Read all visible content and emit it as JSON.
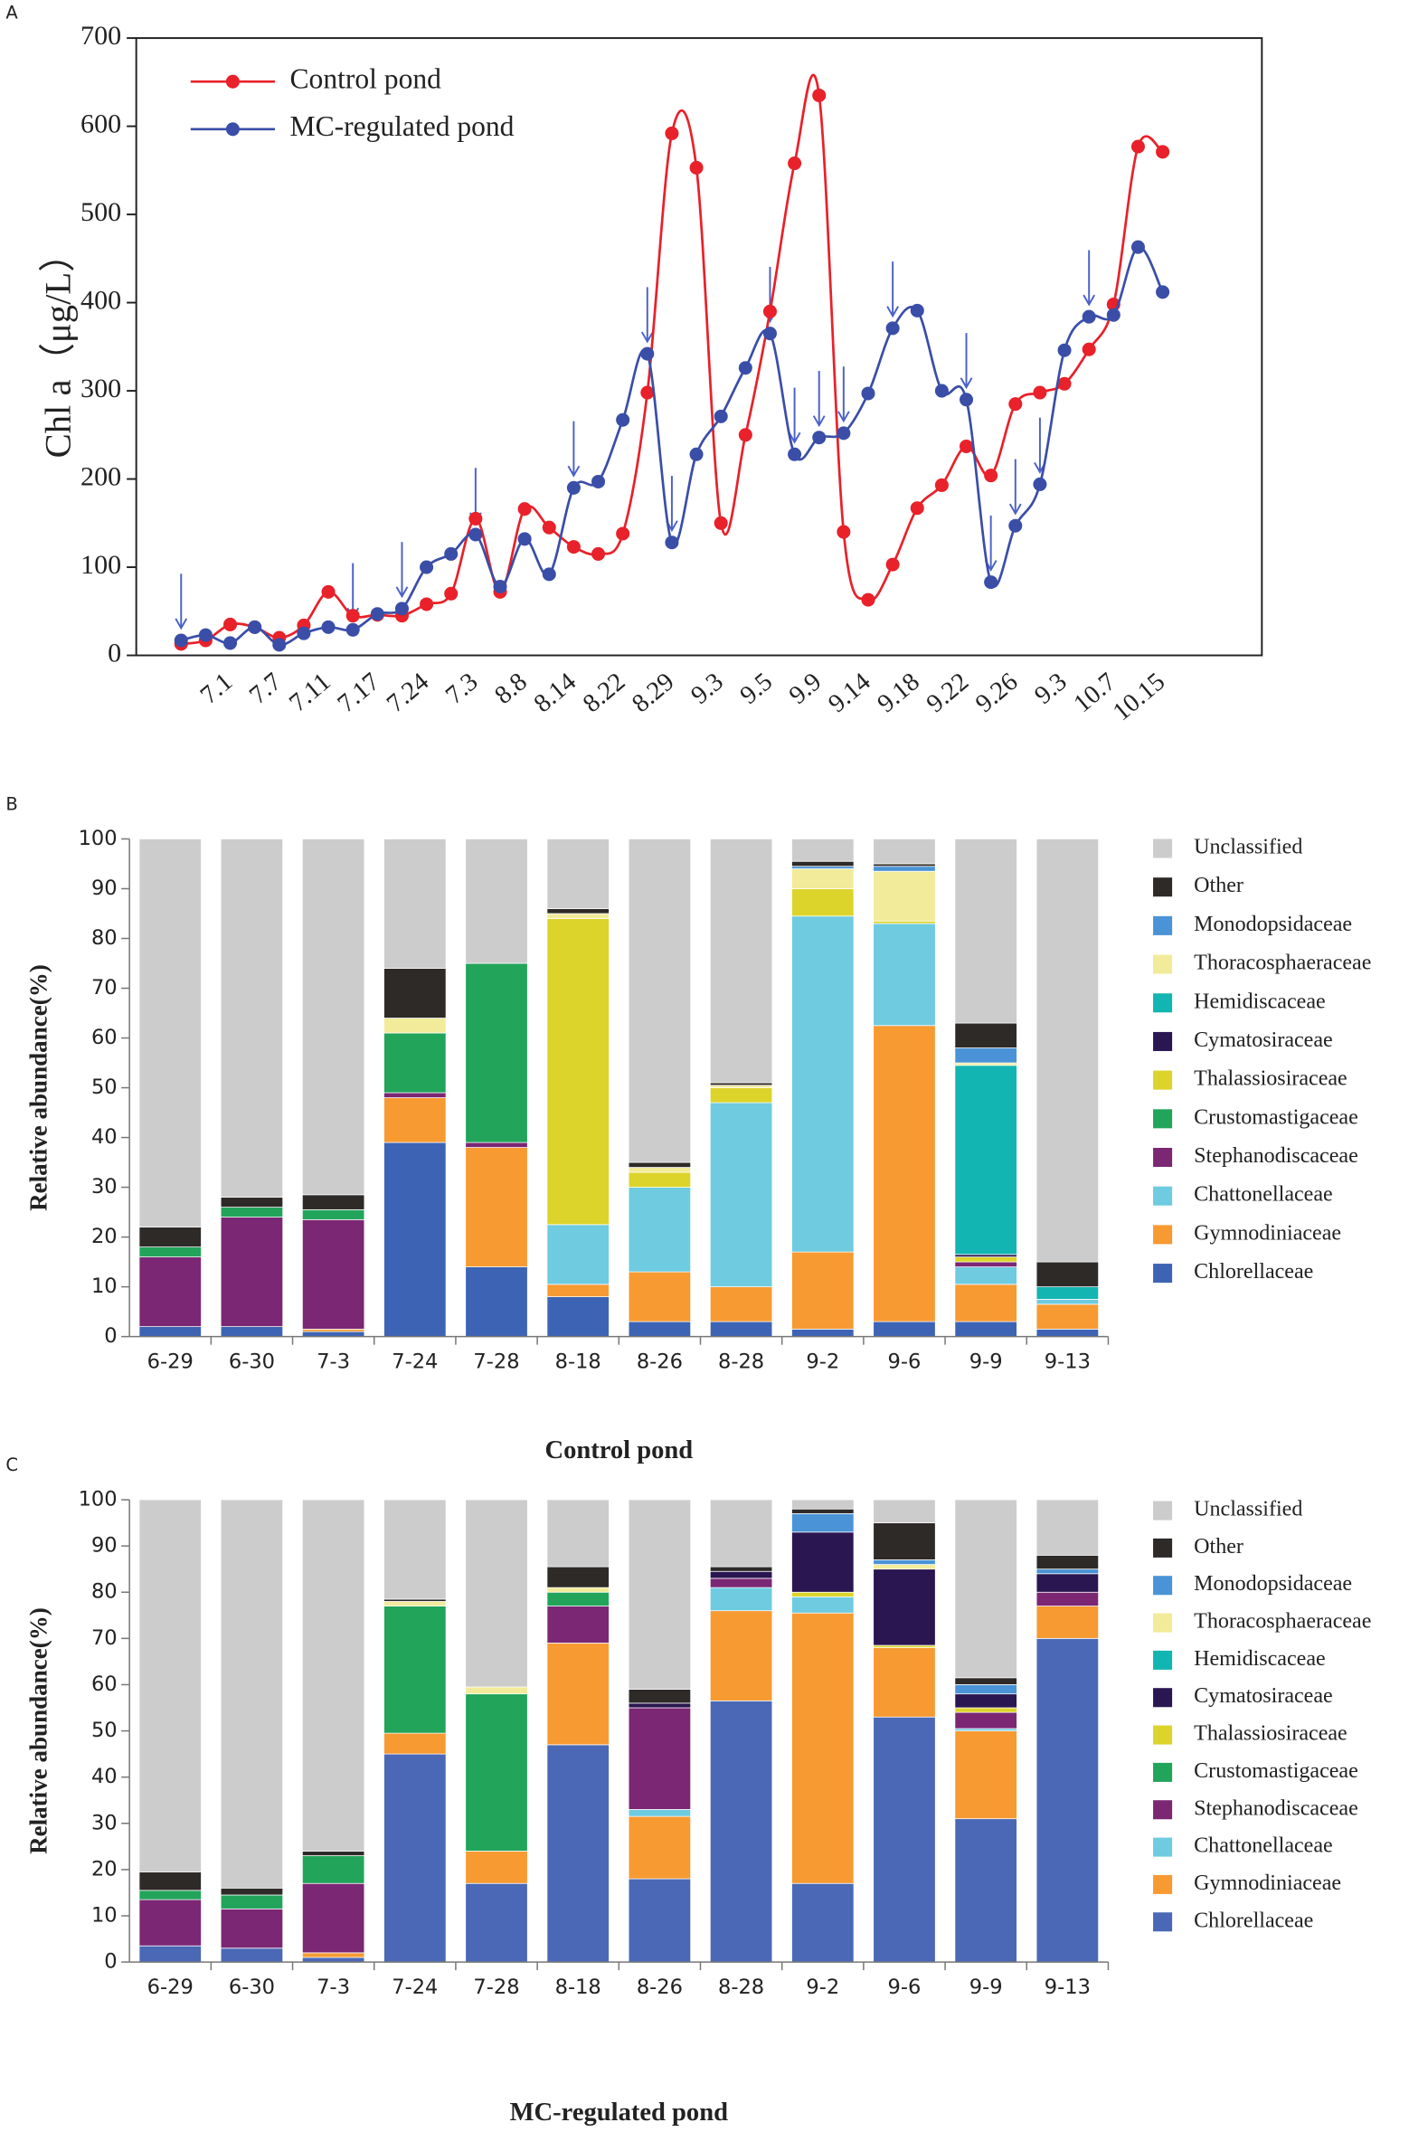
{
  "chart_data": [
    {
      "type": "line",
      "panel": "A",
      "ylabel": "Chl a（μg/L）",
      "categories": [
        null,
        "7.1",
        null,
        "7.7",
        null,
        "7.11",
        null,
        "7.17",
        null,
        "7.24",
        null,
        "7.3",
        null,
        "8.8",
        null,
        "8.14",
        null,
        "8.22",
        null,
        "8.29",
        null,
        "9.3",
        null,
        "9.5",
        null,
        "9.9",
        null,
        "9.14",
        null,
        "9.18",
        null,
        "9.22",
        null,
        "9.26",
        null,
        "9.3",
        null,
        "10.7",
        null,
        "10.15",
        null
      ],
      "ylim": [
        0,
        700
      ],
      "yticks": [
        0,
        100,
        200,
        300,
        400,
        500,
        600,
        700
      ],
      "series": [
        {
          "name": "Control pond",
          "color": "#e8212a",
          "values": [
            13,
            17,
            35,
            32,
            20,
            34,
            72,
            45,
            46,
            45,
            58,
            70,
            155,
            72,
            166,
            145,
            123,
            115,
            138,
            298,
            592,
            553,
            150,
            250,
            390,
            558,
            635,
            140,
            63,
            103,
            167,
            193,
            237,
            204,
            285,
            298,
            308,
            347,
            398,
            577,
            571
          ]
        },
        {
          "name": "MC-regulated pond",
          "color": "#3a4ea8",
          "values": [
            17,
            23,
            14,
            32,
            12,
            25,
            32,
            29,
            47,
            53,
            100,
            115,
            137,
            78,
            132,
            92,
            190,
            197,
            267,
            342,
            128,
            228,
            271,
            326,
            365,
            228,
            247,
            252,
            297,
            371,
            391,
            300,
            290,
            83,
            147,
            194,
            346,
            384,
            386,
            463,
            412
          ]
        }
      ]
    },
    {
      "type": "bar",
      "stacked": true,
      "panel": "B",
      "xlabel": "Control pond",
      "ylabel": "Relative abundance(%)",
      "categories": [
        "6-29",
        "6-30",
        "7-3",
        "7-24",
        "7-28",
        "8-18",
        "8-26",
        "8-28",
        "9-2",
        "9-6",
        "9-9",
        "9-13"
      ],
      "ylim": [
        0,
        100
      ],
      "yticks": [
        0,
        10,
        20,
        30,
        40,
        50,
        60,
        70,
        80,
        90,
        100
      ],
      "series": [
        {
          "name": "Chlorellaceae",
          "color": "#3d64b4",
          "values": [
            2,
            2,
            1,
            39,
            14,
            8,
            3,
            3,
            1.5,
            3,
            3,
            1.5
          ]
        },
        {
          "name": "Gymnodiniaceae",
          "color": "#f79a32",
          "values": [
            0,
            0,
            0.5,
            9,
            24,
            2.5,
            10,
            7,
            15.5,
            59.5,
            7.5,
            5
          ]
        },
        {
          "name": "Chattonellaceae",
          "color": "#6ecbe0",
          "values": [
            0,
            0,
            0,
            0,
            0,
            12,
            17,
            37,
            67.5,
            20.5,
            3.5,
            1
          ]
        },
        {
          "name": "Stephanodiscaceae",
          "color": "#7b2774",
          "values": [
            14,
            22,
            22,
            1,
            1,
            0,
            0,
            0,
            0,
            0,
            1,
            0
          ]
        },
        {
          "name": "Crustomastigaceae",
          "color": "#22a45a",
          "values": [
            2,
            2,
            2,
            12,
            36,
            0,
            0,
            0,
            0,
            0,
            0,
            0
          ]
        },
        {
          "name": "Thalassiosiraceae",
          "color": "#dcd42a",
          "values": [
            0,
            0,
            0,
            0,
            0,
            61.5,
            3,
            3,
            5.5,
            0.5,
            1,
            0
          ]
        },
        {
          "name": "Cymatosiraceae",
          "color": "#2a1650",
          "values": [
            0,
            0,
            0,
            0,
            0,
            0,
            0,
            0,
            0,
            0,
            0.5,
            0
          ]
        },
        {
          "name": "Hemidiscaceae",
          "color": "#13b5b2",
          "values": [
            0,
            0,
            0,
            0,
            0,
            0,
            0,
            0,
            0,
            0,
            38,
            2.5
          ]
        },
        {
          "name": "Thoracosphaeraceae",
          "color": "#f2eb9a",
          "values": [
            0,
            0,
            0,
            3,
            0,
            1,
            1,
            0.5,
            4,
            10,
            0.5,
            0
          ]
        },
        {
          "name": "Monodopsidaceae",
          "color": "#4a93d6",
          "values": [
            0,
            0,
            0,
            0,
            0,
            0,
            0,
            0,
            0.5,
            1,
            3,
            0
          ]
        },
        {
          "name": "Other",
          "color": "#2e2a28",
          "values": [
            4,
            2,
            3,
            10,
            0,
            1,
            1,
            0.5,
            1,
            0.5,
            5,
            5
          ]
        },
        {
          "name": "Unclassified",
          "color": "#cccccc",
          "values": [
            78,
            72,
            71.5,
            26,
            25,
            14,
            65,
            49,
            4.5,
            5,
            37,
            85
          ]
        }
      ]
    },
    {
      "type": "bar",
      "stacked": true,
      "panel": "C",
      "xlabel": "MC-regulated pond",
      "ylabel": "Relative abundance(%)",
      "categories": [
        "6-29",
        "6-30",
        "7-3",
        "7-24",
        "7-28",
        "8-18",
        "8-26",
        "8-28",
        "9-2",
        "9-6",
        "9-9",
        "9-13"
      ],
      "ylim": [
        0,
        100
      ],
      "yticks": [
        0,
        10,
        20,
        30,
        40,
        50,
        60,
        70,
        80,
        90,
        100
      ],
      "series": [
        {
          "name": "Chlorellaceae",
          "color": "#4a68b5",
          "values": [
            3.5,
            3,
            1,
            45,
            17,
            47,
            18,
            56.5,
            17,
            53,
            31,
            70
          ]
        },
        {
          "name": "Gymnodiniaceae",
          "color": "#f79a32",
          "values": [
            0,
            0,
            1,
            4.5,
            7,
            22,
            13.5,
            19.5,
            58.5,
            15,
            19,
            7
          ]
        },
        {
          "name": "Chattonellaceae",
          "color": "#6ecbe0",
          "values": [
            0,
            0,
            0,
            0,
            0,
            0,
            1.5,
            5,
            3.5,
            0,
            0.5,
            0
          ]
        },
        {
          "name": "Stephanodiscaceae",
          "color": "#7b2774",
          "values": [
            10,
            8.5,
            15,
            0,
            0,
            8,
            22,
            2,
            0,
            0,
            3.5,
            3
          ]
        },
        {
          "name": "Crustomastigaceae",
          "color": "#22a45a",
          "values": [
            2,
            3,
            6,
            27.5,
            34,
            3,
            0,
            0,
            0,
            0,
            0,
            0
          ]
        },
        {
          "name": "Thalassiosiraceae",
          "color": "#dcd42a",
          "values": [
            0,
            0,
            0,
            0,
            0,
            0,
            0,
            0,
            1,
            0.5,
            1,
            0
          ]
        },
        {
          "name": "Cymatosiraceae",
          "color": "#2a1650",
          "values": [
            0,
            0,
            0,
            0,
            0,
            0,
            1,
            1.5,
            13,
            16.5,
            3,
            4
          ]
        },
        {
          "name": "Hemidiscaceae",
          "color": "#13b5b2",
          "values": [
            0,
            0,
            0,
            0,
            0,
            0,
            0,
            0,
            0,
            0,
            0,
            0
          ]
        },
        {
          "name": "Thoracosphaeraceae",
          "color": "#f2eb9a",
          "values": [
            0,
            0,
            0,
            1,
            1.5,
            1,
            0,
            0,
            0,
            1,
            0,
            0
          ]
        },
        {
          "name": "Monodopsidaceae",
          "color": "#4a93d6",
          "values": [
            0,
            0,
            0,
            0,
            0,
            0,
            0,
            0,
            4,
            1,
            2,
            1
          ]
        },
        {
          "name": "Other",
          "color": "#2e2a28",
          "values": [
            4,
            1.5,
            1,
            0.5,
            0,
            4.5,
            3,
            1,
            1,
            8,
            1.5,
            3
          ]
        },
        {
          "name": "Unclassified",
          "color": "#cccccc",
          "values": [
            80.5,
            84,
            76,
            21.5,
            40.5,
            14.5,
            41,
            14.5,
            2,
            5,
            38.5,
            12
          ]
        }
      ]
    }
  ]
}
